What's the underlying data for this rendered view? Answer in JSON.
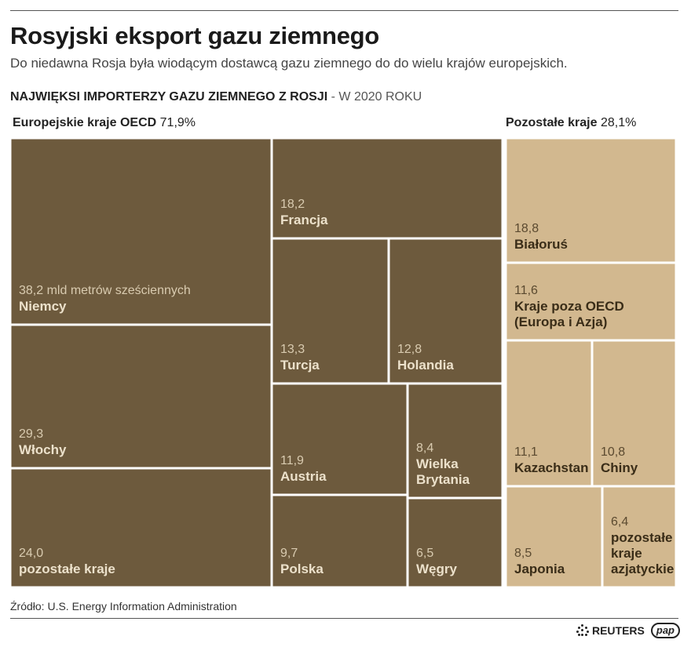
{
  "header": {
    "title": "Rosyjski eksport gazu ziemnego",
    "subtitle": "Do niedawna Rosja była wiodącym dostawcą gazu ziemnego do do wielu krajów europejskich.",
    "section_bold": "NAJWIĘKSI IMPORTERZY GAZU ZIEMNEGO Z ROSJI",
    "section_light": " - W 2020 ROKU"
  },
  "groups": {
    "left": {
      "name": "Europejskie kraje OECD",
      "share": "71,9%"
    },
    "right": {
      "name": "Pozostałe kraje",
      "share": "28,1%"
    }
  },
  "colors": {
    "oecd": "#6d5a3d",
    "other": "#d2b88f",
    "border": "#ffffff"
  },
  "chart_data": {
    "type": "treemap",
    "unit": "mld metrów sześciennych",
    "groups": [
      {
        "name": "Europejskie kraje OECD",
        "share": "71,9%",
        "items": [
          {
            "name": "Niemcy",
            "value": 38.2,
            "label": "38,2 mld metrów sześciennych"
          },
          {
            "name": "Włochy",
            "value": 29.3,
            "label": "29,3"
          },
          {
            "name": "pozostałe kraje",
            "value": 24.0,
            "label": "24,0"
          },
          {
            "name": "Francja",
            "value": 18.2,
            "label": "18,2"
          },
          {
            "name": "Turcja",
            "value": 13.3,
            "label": "13,3"
          },
          {
            "name": "Holandia",
            "value": 12.8,
            "label": "12,8"
          },
          {
            "name": "Austria",
            "value": 11.9,
            "label": "11,9"
          },
          {
            "name": "Wielka Brytania",
            "value": 8.4,
            "label": "8,4",
            "lines": [
              "Wielka",
              "Brytania"
            ]
          },
          {
            "name": "Polska",
            "value": 9.7,
            "label": "9,7"
          },
          {
            "name": "Węgry",
            "value": 6.5,
            "label": "6,5"
          }
        ]
      },
      {
        "name": "Pozostałe kraje",
        "share": "28,1%",
        "items": [
          {
            "name": "Białoruś",
            "value": 18.8,
            "label": "18,8"
          },
          {
            "name": "Kraje poza OECD (Europa i Azja)",
            "value": 11.6,
            "label": "11,6",
            "lines": [
              "Kraje poza OECD",
              "(Europa i Azja)"
            ]
          },
          {
            "name": "Kazachstan",
            "value": 11.1,
            "label": "11,1"
          },
          {
            "name": "Chiny",
            "value": 10.8,
            "label": "10,8"
          },
          {
            "name": "Japonia",
            "value": 8.5,
            "label": "8,5"
          },
          {
            "name": "pozostałe kraje azjatyckie",
            "value": 6.4,
            "label": "6,4",
            "lines": [
              "pozostałe",
              "kraje",
              "azjatyckie"
            ]
          }
        ]
      }
    ]
  },
  "footer": {
    "source": "Źródło: U.S. Energy Information Administration",
    "logo_reuters": "REUTERS",
    "logo_pap": "pap"
  }
}
